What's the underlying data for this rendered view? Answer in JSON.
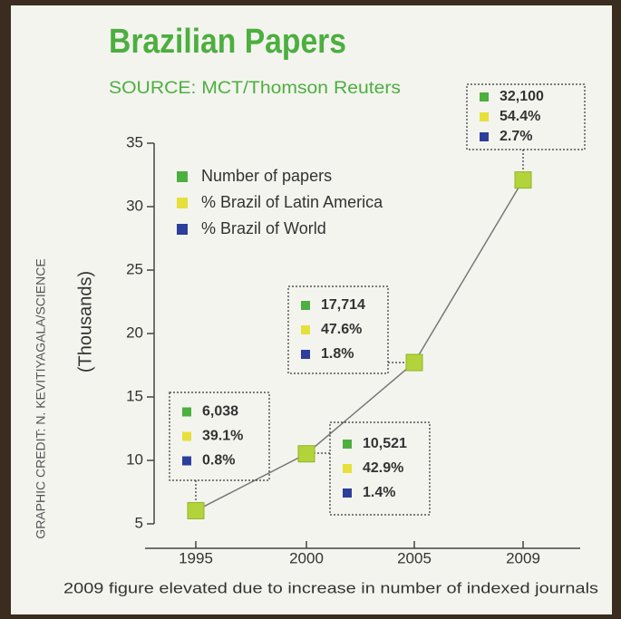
{
  "chart_data": {
    "type": "line",
    "title": "Brazilian Papers",
    "subtitle": "SOURCE: MCT/Thomson Reuters",
    "y_label": "(Thousands)",
    "credit": "GRAPHIC CREDIT: N. KEVITIYAGALA/SCIENCE",
    "footnote": "2009 figure elevated due to increase in number of indexed journals",
    "categories": [
      "1995",
      "2000",
      "2005",
      "2009"
    ],
    "series": [
      {
        "name": "Number of papers",
        "color": "#4caf3f",
        "values": [
          6.038,
          10.521,
          17.714,
          32.1
        ],
        "value_labels": [
          "6,038",
          "10,521",
          "17,714",
          "32,100"
        ]
      },
      {
        "name": "% Brazil of Latin America",
        "color": "#e6e03a",
        "values": [
          39.1,
          42.9,
          47.6,
          54.4
        ],
        "value_labels": [
          "39.1%",
          "42.9%",
          "47.6%",
          "54.4%"
        ]
      },
      {
        "name": "% Brazil of World",
        "color": "#2c3f9c",
        "values": [
          0.8,
          1.4,
          1.8,
          2.7
        ],
        "value_labels": [
          "0.8%",
          "1.4%",
          "1.8%",
          "2.7%"
        ]
      }
    ],
    "ylim": [
      5,
      35
    ],
    "yticks": [
      5,
      10,
      15,
      20,
      25,
      30,
      35
    ]
  }
}
